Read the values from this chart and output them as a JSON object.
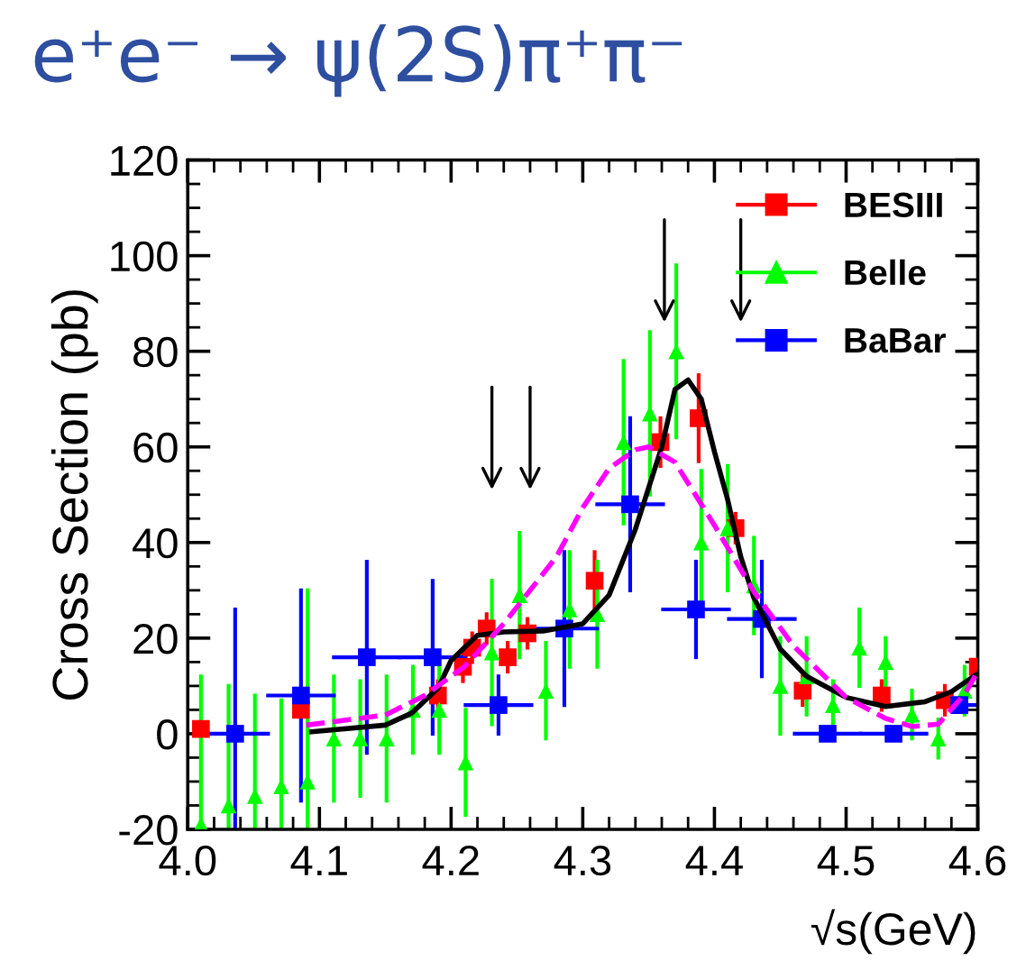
{
  "chart_data": {
    "type": "scatter",
    "title": "e⁺e⁻ → ψ(2S)π⁺π⁻",
    "xlabel": "√s(GeV)",
    "ylabel": "Cross Section (pb)",
    "xlim": [
      4.0,
      4.6
    ],
    "ylim": [
      -20,
      120
    ],
    "xticks": [
      {
        "value": 4.0,
        "label": "4.0"
      },
      {
        "value": 4.1,
        "label": "4.1"
      },
      {
        "value": 4.2,
        "label": "4.2"
      },
      {
        "value": 4.3,
        "label": "4.3"
      },
      {
        "value": 4.4,
        "label": "4.4"
      },
      {
        "value": 4.5,
        "label": "4.5"
      },
      {
        "value": 4.6,
        "label": "4.6"
      }
    ],
    "yticks": [
      -20,
      0,
      20,
      40,
      60,
      80,
      100,
      120
    ],
    "legend": "top right",
    "series": [
      {
        "name": "BESIII",
        "marker": "square",
        "color": "#ff0000",
        "x": [
          4.01,
          4.086,
          4.19,
          4.209,
          4.216,
          4.227,
          4.243,
          4.258,
          4.309,
          4.359,
          4.388,
          4.416,
          4.467,
          4.527,
          4.575,
          4.6
        ],
        "values": [
          1,
          5,
          8,
          14,
          18,
          22,
          16,
          21,
          32,
          61,
          66,
          43,
          9,
          8,
          7,
          14
        ],
        "errors": [
          null,
          null,
          3,
          3,
          3,
          3,
          3,
          3,
          6,
          5,
          9,
          3,
          3,
          3,
          3,
          null
        ]
      },
      {
        "name": "Belle",
        "marker": "triangle",
        "color": "#00ff00",
        "x": [
          4.01,
          4.031,
          4.051,
          4.071,
          4.091,
          4.111,
          4.131,
          4.151,
          4.171,
          4.191,
          4.211,
          4.231,
          4.252,
          4.272,
          4.29,
          4.311,
          4.331,
          4.351,
          4.371,
          4.39,
          4.41,
          4.43,
          4.45,
          4.47,
          4.49,
          4.51,
          4.53,
          4.55,
          4.57,
          4.59
        ],
        "values": [
          -19,
          -15,
          -13,
          -11,
          -10,
          -1,
          -1,
          -1,
          5,
          5,
          -6,
          17,
          29,
          9,
          26,
          25,
          61,
          67,
          80,
          40,
          43,
          31,
          10,
          12,
          6,
          18,
          15,
          4,
          -1,
          9
        ],
        "errors": [
          31,
          25,
          21,
          18,
          40,
          13,
          12,
          13,
          9,
          9,
          11,
          15,
          13,
          10,
          12,
          11,
          17,
          17,
          18,
          15,
          13,
          10,
          10,
          8,
          5,
          8,
          5,
          5,
          4,
          5
        ]
      },
      {
        "name": "BaBar",
        "marker": "square",
        "color": "#0000ff",
        "x": [
          4.036,
          4.086,
          4.136,
          4.186,
          4.236,
          4.286,
          4.336,
          4.386,
          4.436,
          4.486,
          4.536,
          4.586
        ],
        "values": [
          0,
          8,
          16,
          16,
          6,
          22,
          48,
          26,
          24,
          0,
          0,
          6
        ],
        "errors": [
          26,
          22,
          20,
          16,
          6,
          16,
          18,
          10,
          12,
          null,
          null,
          null
        ],
        "xerrors": [
          0.025,
          0.025,
          0.025,
          0.025,
          0.025,
          0.025,
          0.025,
          0.025,
          0.025,
          0.025,
          0.025,
          0.0125
        ]
      },
      {
        "type": "line",
        "line_style": "solid",
        "color": "#000000",
        "x": [
          4.094,
          4.15,
          4.17,
          4.19,
          4.2,
          4.21,
          4.22,
          4.24,
          4.27,
          4.3,
          4.32,
          4.34,
          4.36,
          4.37,
          4.38,
          4.39,
          4.4,
          4.41,
          4.42,
          4.43,
          4.45,
          4.47,
          4.5,
          4.53,
          4.56,
          4.58,
          4.6
        ],
        "values": [
          0.4,
          1.8,
          4.3,
          9.5,
          15.3,
          18,
          20.6,
          21.3,
          21.5,
          23,
          29,
          42.8,
          60,
          72,
          74,
          70,
          59,
          49,
          37,
          28.4,
          17.7,
          12,
          7.6,
          5.7,
          6.7,
          8.8,
          12.6
        ]
      },
      {
        "type": "line",
        "line_style": "dashed",
        "color": "#ff00ff",
        "x": [
          4.09,
          4.15,
          4.18,
          4.21,
          4.24,
          4.26,
          4.28,
          4.3,
          4.32,
          4.34,
          4.35,
          4.37,
          4.4,
          4.43,
          4.46,
          4.5,
          4.53,
          4.55,
          4.57,
          4.59,
          4.6
        ],
        "values": [
          1.8,
          3.9,
          8,
          14,
          23,
          30,
          37,
          47.3,
          55.5,
          59.4,
          60,
          56.8,
          43.6,
          29.7,
          18.4,
          7.6,
          3.2,
          1.5,
          2,
          8.3,
          13
        ]
      }
    ]
  }
}
